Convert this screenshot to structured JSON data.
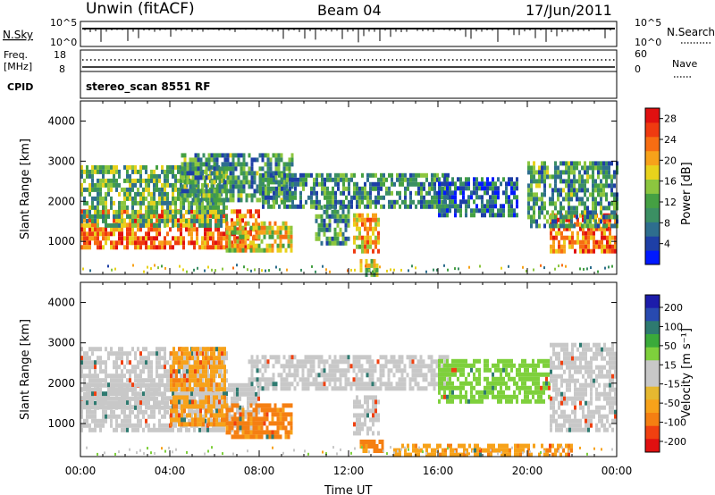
{
  "header": {
    "station": "Unwin (fitACF)",
    "beam": "Beam 04",
    "date": "17/Jun/2011"
  },
  "top_panel": {
    "nsky_label": "N.Sky",
    "nsky_ticks": [
      "10^5",
      "10^0"
    ],
    "nsearch_label": "N.Search",
    "nsearch_ticks": [
      "10^5",
      "10^0"
    ],
    "freq_label": "Freq.",
    "freq_unit": "[MHz]",
    "freq_ticks": [
      "18",
      "8"
    ],
    "nave_label": "Nave",
    "nave_ticks": [
      "60",
      "0"
    ],
    "cpid_label": "CPID",
    "cpid_value": "stereo_scan 8551 RF"
  },
  "colors": {
    "power": [
      "#0019ff",
      "#1e3fa6",
      "#2e6e8e",
      "#3b8f63",
      "#45a043",
      "#8cc63f",
      "#e8d21c",
      "#f7a21a",
      "#f76d12",
      "#ef3a10",
      "#e01010"
    ],
    "velocity": [
      "#e01010",
      "#f04010",
      "#f57f12",
      "#f7a21a",
      "#e6b830",
      "#c8c8c8",
      "#c8c8c8",
      "#7ed03c",
      "#3aaa3a",
      "#2e7a70",
      "#284ab0",
      "#1c1caa"
    ]
  },
  "chart_data": [
    {
      "type": "heatmap",
      "name": "power",
      "ylabel": "Slant Range [km]",
      "yticks": [
        "1000",
        "2000",
        "3000",
        "4000"
      ],
      "ylim": [
        180,
        4500
      ],
      "xlim": [
        0,
        24
      ],
      "colorbar_label": "Power [dB]",
      "colorbar_ticks": [
        "4",
        "8",
        "12",
        "16",
        "20",
        "24",
        "28"
      ],
      "colorbar_range": [
        0,
        30
      ],
      "regions": [
        {
          "t0": 0.0,
          "t1": 8.0,
          "r0": 800,
          "r1": 1800,
          "v": 24
        },
        {
          "t0": 0.0,
          "t1": 6.5,
          "r0": 1400,
          "r1": 2900,
          "v": 12
        },
        {
          "t0": 4.5,
          "t1": 9.5,
          "r0": 2000,
          "r1": 3200,
          "v": 10
        },
        {
          "t0": 6.5,
          "t1": 9.5,
          "r0": 800,
          "r1": 1500,
          "v": 18
        },
        {
          "t0": 8.0,
          "t1": 16.5,
          "r0": 1900,
          "r1": 2700,
          "v": 9
        },
        {
          "t0": 10.5,
          "t1": 12.0,
          "r0": 1000,
          "r1": 1900,
          "v": 10
        },
        {
          "t0": 12.2,
          "t1": 13.3,
          "r0": 800,
          "r1": 1700,
          "v": 20
        },
        {
          "t0": 16.0,
          "t1": 19.5,
          "r0": 1600,
          "r1": 2600,
          "v": 6
        },
        {
          "t0": 21.0,
          "t1": 24.0,
          "r0": 800,
          "r1": 1700,
          "v": 24
        },
        {
          "t0": 20.0,
          "t1": 24.0,
          "r0": 1400,
          "r1": 3000,
          "v": 10
        },
        {
          "t0": 12.5,
          "t1": 13.3,
          "r0": 220,
          "r1": 560,
          "v": 16
        }
      ]
    },
    {
      "type": "heatmap",
      "name": "velocity",
      "ylabel": "Slant Range [km]",
      "yticks": [
        "1000",
        "2000",
        "3000",
        "4000"
      ],
      "ylim": [
        180,
        4500
      ],
      "xlim": [
        0,
        24
      ],
      "xticks": [
        "00:00",
        "04:00",
        "08:00",
        "12:00",
        "16:00",
        "20:00",
        "00:00"
      ],
      "xlabel": "Time UT",
      "colorbar_label": "Velocity [m s⁻¹]",
      "colorbar_ticks": [
        "200",
        "100",
        "50",
        "15",
        "-15",
        "-50",
        "-100",
        "-200"
      ],
      "regions": [
        {
          "t0": 0.0,
          "t1": 8.0,
          "r0": 800,
          "r1": 2000,
          "v": 0
        },
        {
          "t0": 0.0,
          "t1": 6.5,
          "r0": 1400,
          "r1": 2900,
          "v": 0
        },
        {
          "t0": 4.0,
          "t1": 6.5,
          "r0": 1900,
          "r1": 2900,
          "v": -40
        },
        {
          "t0": 4.0,
          "t1": 6.5,
          "r0": 1000,
          "r1": 1700,
          "v": -40
        },
        {
          "t0": 6.5,
          "t1": 9.5,
          "r0": 700,
          "r1": 1500,
          "v": -60
        },
        {
          "t0": 7.5,
          "t1": 16.5,
          "r0": 1900,
          "r1": 2700,
          "v": 0
        },
        {
          "t0": 12.2,
          "t1": 13.3,
          "r0": 800,
          "r1": 1700,
          "v": 0
        },
        {
          "t0": 12.5,
          "t1": 13.5,
          "r0": 300,
          "r1": 600,
          "v": -60
        },
        {
          "t0": 16.0,
          "t1": 21.0,
          "r0": 1600,
          "r1": 2600,
          "v": 30
        },
        {
          "t0": 21.0,
          "t1": 24.0,
          "r0": 800,
          "r1": 3000,
          "v": 0
        },
        {
          "t0": 14.0,
          "t1": 22.0,
          "r0": 200,
          "r1": 500,
          "v": -40
        }
      ]
    }
  ]
}
